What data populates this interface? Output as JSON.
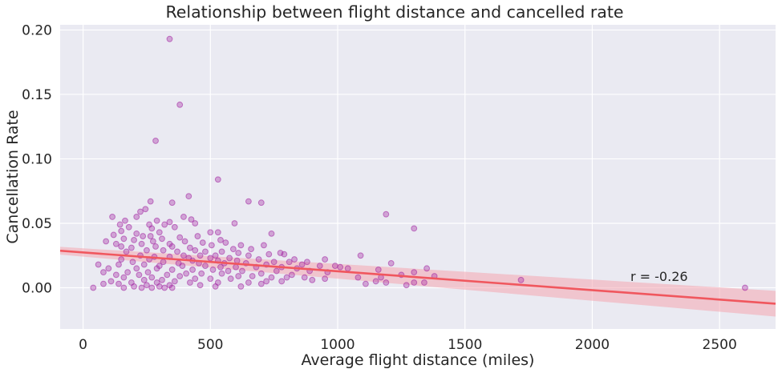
{
  "chart_data": {
    "type": "scatter",
    "title": "Relationship between flight distance and cancelled rate",
    "xlabel": "Average flight distance (miles)",
    "ylabel": "Cancellation Rate",
    "xlim": [
      -90,
      2720
    ],
    "ylim": [
      -0.032,
      0.204
    ],
    "x_ticks": [
      0,
      500,
      1000,
      1500,
      2000,
      2500
    ],
    "y_ticks": [
      0.0,
      0.05,
      0.1,
      0.15,
      0.2
    ],
    "x_tick_labels": [
      "0",
      "500",
      "1000",
      "1500",
      "2000",
      "2500"
    ],
    "y_tick_labels": [
      "0.00",
      "0.05",
      "0.10",
      "0.15",
      "0.20"
    ],
    "grid": true,
    "background": "#eaeaf2",
    "grid_color": "#ffffff",
    "point_color": "#a020a0",
    "regression_color": "#f0575e",
    "band_color": "#f4a6b0",
    "annotation": "r = -0.26",
    "regression": {
      "x": [
        -90,
        2720
      ],
      "y": [
        0.0287,
        -0.0124
      ],
      "ci_lower": [
        0.0257,
        -0.0224
      ],
      "ci_upper": [
        0.0317,
        -0.0024
      ]
    },
    "points": [
      [
        340,
        0.193
      ],
      [
        380,
        0.142
      ],
      [
        285,
        0.114
      ],
      [
        530,
        0.084
      ],
      [
        415,
        0.071
      ],
      [
        650,
        0.067
      ],
      [
        265,
        0.067
      ],
      [
        700,
        0.066
      ],
      [
        350,
        0.066
      ],
      [
        245,
        0.061
      ],
      [
        225,
        0.059
      ],
      [
        1190,
        0.057
      ],
      [
        210,
        0.055
      ],
      [
        115,
        0.055
      ],
      [
        395,
        0.055
      ],
      [
        165,
        0.052
      ],
      [
        340,
        0.051
      ],
      [
        290,
        0.052
      ],
      [
        425,
        0.053
      ],
      [
        440,
        0.05
      ],
      [
        595,
        0.05
      ],
      [
        145,
        0.049
      ],
      [
        320,
        0.049
      ],
      [
        260,
        0.049
      ],
      [
        180,
        0.047
      ],
      [
        360,
        0.047
      ],
      [
        270,
        0.046
      ],
      [
        1300,
        0.046
      ],
      [
        150,
        0.044
      ],
      [
        500,
        0.043
      ],
      [
        530,
        0.043
      ],
      [
        740,
        0.042
      ],
      [
        300,
        0.043
      ],
      [
        210,
        0.042
      ],
      [
        120,
        0.041
      ],
      [
        450,
        0.04
      ],
      [
        235,
        0.04
      ],
      [
        265,
        0.04
      ],
      [
        380,
        0.039
      ],
      [
        160,
        0.038
      ],
      [
        310,
        0.038
      ],
      [
        540,
        0.037
      ],
      [
        90,
        0.036
      ],
      [
        200,
        0.037
      ],
      [
        400,
        0.036
      ],
      [
        275,
        0.036
      ],
      [
        470,
        0.035
      ],
      [
        560,
        0.035
      ],
      [
        340,
        0.034
      ],
      [
        130,
        0.034
      ],
      [
        230,
        0.034
      ],
      [
        505,
        0.033
      ],
      [
        620,
        0.033
      ],
      [
        710,
        0.033
      ],
      [
        150,
        0.032
      ],
      [
        285,
        0.032
      ],
      [
        350,
        0.032
      ],
      [
        420,
        0.031
      ],
      [
        190,
        0.031
      ],
      [
        590,
        0.03
      ],
      [
        660,
        0.03
      ],
      [
        440,
        0.029
      ],
      [
        250,
        0.029
      ],
      [
        315,
        0.029
      ],
      [
        370,
        0.028
      ],
      [
        480,
        0.028
      ],
      [
        545,
        0.028
      ],
      [
        170,
        0.028
      ],
      [
        610,
        0.027
      ],
      [
        775,
        0.027
      ],
      [
        790,
        0.026
      ],
      [
        730,
        0.026
      ],
      [
        1090,
        0.025
      ],
      [
        395,
        0.025
      ],
      [
        460,
        0.025
      ],
      [
        520,
        0.025
      ],
      [
        650,
        0.025
      ],
      [
        225,
        0.025
      ],
      [
        280,
        0.024
      ],
      [
        340,
        0.024
      ],
      [
        415,
        0.023
      ],
      [
        575,
        0.023
      ],
      [
        500,
        0.023
      ],
      [
        690,
        0.022
      ],
      [
        830,
        0.022
      ],
      [
        950,
        0.022
      ],
      [
        150,
        0.022
      ],
      [
        260,
        0.022
      ],
      [
        430,
        0.021
      ],
      [
        530,
        0.021
      ],
      [
        605,
        0.021
      ],
      [
        750,
        0.02
      ],
      [
        810,
        0.02
      ],
      [
        880,
        0.02
      ],
      [
        1210,
        0.019
      ],
      [
        195,
        0.02
      ],
      [
        315,
        0.02
      ],
      [
        375,
        0.019
      ],
      [
        455,
        0.019
      ],
      [
        555,
        0.019
      ],
      [
        640,
        0.019
      ],
      [
        720,
        0.018
      ],
      [
        860,
        0.018
      ],
      [
        990,
        0.017
      ],
      [
        930,
        0.017
      ],
      [
        1010,
        0.016
      ],
      [
        60,
        0.018
      ],
      [
        140,
        0.018
      ],
      [
        240,
        0.018
      ],
      [
        300,
        0.017
      ],
      [
        390,
        0.017
      ],
      [
        480,
        0.017
      ],
      [
        540,
        0.016
      ],
      [
        600,
        0.016
      ],
      [
        680,
        0.016
      ],
      [
        780,
        0.016
      ],
      [
        840,
        0.015
      ],
      [
        1040,
        0.015
      ],
      [
        1160,
        0.014
      ],
      [
        1350,
        0.015
      ],
      [
        100,
        0.015
      ],
      [
        210,
        0.015
      ],
      [
        290,
        0.015
      ],
      [
        350,
        0.014
      ],
      [
        430,
        0.014
      ],
      [
        510,
        0.014
      ],
      [
        570,
        0.013
      ],
      [
        625,
        0.013
      ],
      [
        760,
        0.013
      ],
      [
        890,
        0.013
      ],
      [
        960,
        0.012
      ],
      [
        1300,
        0.012
      ],
      [
        80,
        0.012
      ],
      [
        175,
        0.012
      ],
      [
        255,
        0.012
      ],
      [
        405,
        0.011
      ],
      [
        465,
        0.011
      ],
      [
        545,
        0.011
      ],
      [
        700,
        0.011
      ],
      [
        820,
        0.01
      ],
      [
        1250,
        0.01
      ],
      [
        1380,
        0.009
      ],
      [
        130,
        0.01
      ],
      [
        220,
        0.01
      ],
      [
        330,
        0.01
      ],
      [
        380,
        0.009
      ],
      [
        610,
        0.009
      ],
      [
        665,
        0.009
      ],
      [
        740,
        0.008
      ],
      [
        800,
        0.008
      ],
      [
        870,
        0.008
      ],
      [
        1080,
        0.008
      ],
      [
        1170,
        0.008
      ],
      [
        160,
        0.008
      ],
      [
        270,
        0.008
      ],
      [
        440,
        0.007
      ],
      [
        500,
        0.007
      ],
      [
        580,
        0.007
      ],
      [
        950,
        0.007
      ],
      [
        1720,
        0.006
      ],
      [
        110,
        0.005
      ],
      [
        240,
        0.006
      ],
      [
        310,
        0.006
      ],
      [
        360,
        0.005
      ],
      [
        720,
        0.005
      ],
      [
        780,
        0.005
      ],
      [
        1150,
        0.005
      ],
      [
        1190,
        0.004
      ],
      [
        1300,
        0.004
      ],
      [
        1340,
        0.004
      ],
      [
        190,
        0.004
      ],
      [
        290,
        0.004
      ],
      [
        420,
        0.004
      ],
      [
        530,
        0.004
      ],
      [
        650,
        0.004
      ],
      [
        1110,
        0.003
      ],
      [
        1270,
        0.002
      ],
      [
        80,
        0.003
      ],
      [
        140,
        0.003
      ],
      [
        250,
        0.002
      ],
      [
        340,
        0.002
      ],
      [
        460,
        0.002
      ],
      [
        520,
        0.001
      ],
      [
        200,
        0.001
      ],
      [
        300,
        0.001
      ],
      [
        40,
        0.0
      ],
      [
        160,
        0.0
      ],
      [
        230,
        0.0
      ],
      [
        270,
        0.0
      ],
      [
        320,
        0.0
      ],
      [
        350,
        0.0
      ],
      [
        2600,
        0.0
      ],
      [
        620,
        0.001
      ],
      [
        700,
        0.003
      ],
      [
        900,
        0.006
      ]
    ]
  }
}
